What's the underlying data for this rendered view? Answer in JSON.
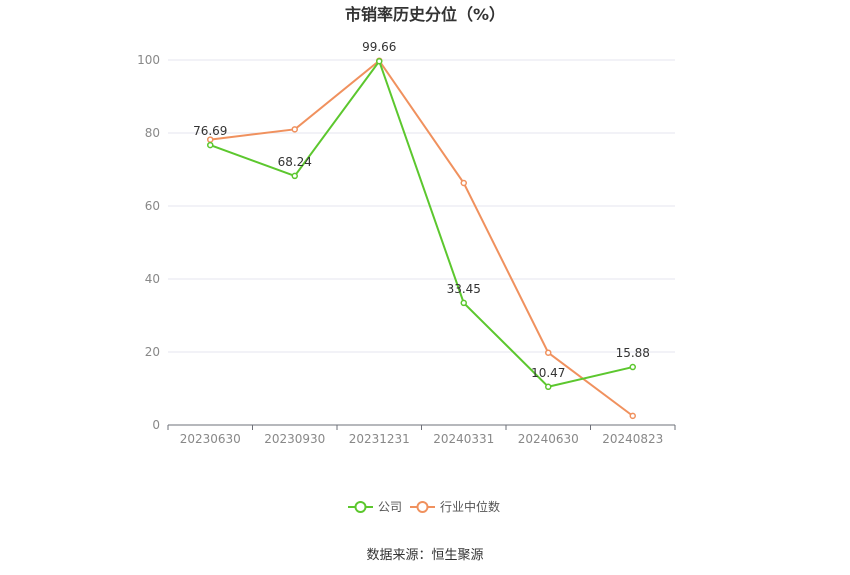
{
  "chart_data": {
    "type": "line",
    "title": "市销率历史分位（%）",
    "xlabel": "",
    "ylabel": "",
    "categories": [
      "20230630",
      "20230930",
      "20231231",
      "20240331",
      "20240630",
      "20240823"
    ],
    "ylim": [
      0,
      100
    ],
    "yticks": [
      0,
      20,
      40,
      60,
      80,
      100
    ],
    "grid": true,
    "legend_position": "bottom",
    "series": [
      {
        "name": "公司",
        "color": "#5cc72e",
        "values": [
          76.69,
          68.24,
          99.66,
          33.45,
          10.47,
          15.88
        ],
        "labels": [
          "76.69",
          "68.24",
          "99.66",
          "33.45",
          "10.47",
          "15.88"
        ]
      },
      {
        "name": "行业中位数",
        "color": "#f0915e",
        "values": [
          78.2,
          81.0,
          99.8,
          66.3,
          19.8,
          2.5
        ]
      }
    ]
  },
  "source_text": "数据来源：恒生聚源"
}
